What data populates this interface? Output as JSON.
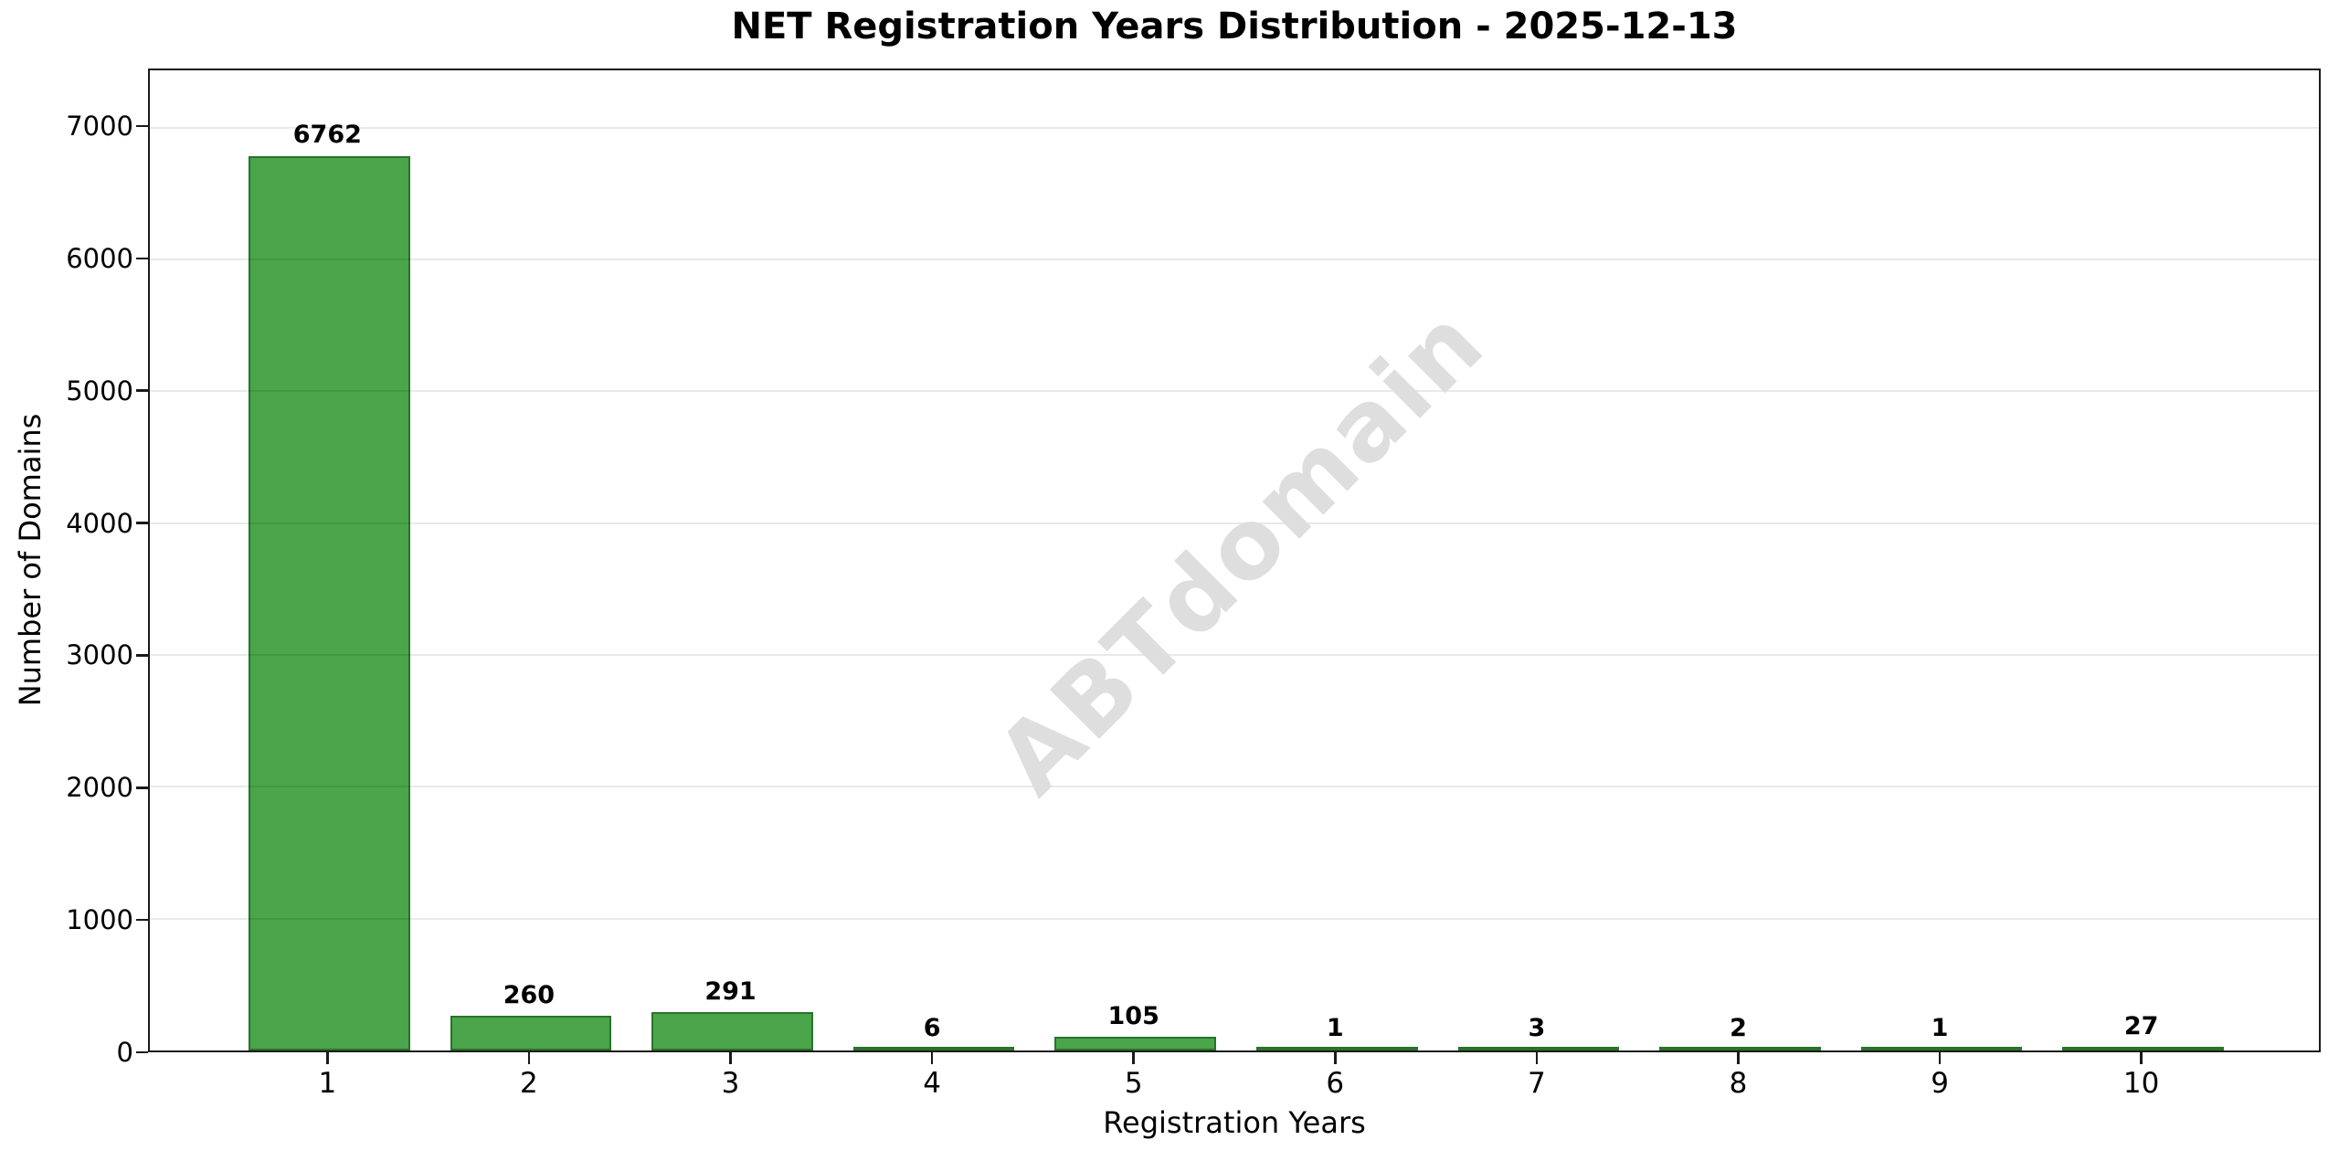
{
  "figure": {
    "title": "NET Registration Years Distribution - 2025-12-13"
  },
  "watermark": {
    "text": "ABTdomain",
    "color": "#dedede",
    "rotation_deg": -45
  },
  "chart_data": {
    "type": "bar",
    "title": "NET Registration Years Distribution - 2025-12-13",
    "xlabel": "Registration Years",
    "ylabel": "Number of Domains",
    "categories": [
      "1",
      "2",
      "3",
      "4",
      "5",
      "6",
      "7",
      "8",
      "9",
      "10"
    ],
    "values": [
      6762,
      260,
      291,
      6,
      105,
      1,
      3,
      2,
      1,
      27
    ],
    "value_labels": [
      "6762",
      "260",
      "291",
      "6",
      "105",
      "1",
      "3",
      "2",
      "1",
      "27"
    ],
    "yticks": [
      0,
      1000,
      2000,
      3000,
      4000,
      5000,
      6000,
      7000
    ],
    "ytick_labels": [
      "0",
      "1000",
      "2000",
      "3000",
      "4000",
      "5000",
      "6000",
      "7000"
    ],
    "ylim": [
      0,
      7435
    ],
    "bar_width_ratio": 0.8,
    "x_range": [
      0.11,
      10.89
    ],
    "grid": "horizontal",
    "legend_position": "none",
    "colors": {
      "bar_fill": "#4aa54b",
      "bar_edge": "#2a722a",
      "gridline": "rgba(0,0,0,0.085)",
      "axis": "#1a1a1a",
      "background": "#ffffff",
      "text": "#000000"
    }
  }
}
